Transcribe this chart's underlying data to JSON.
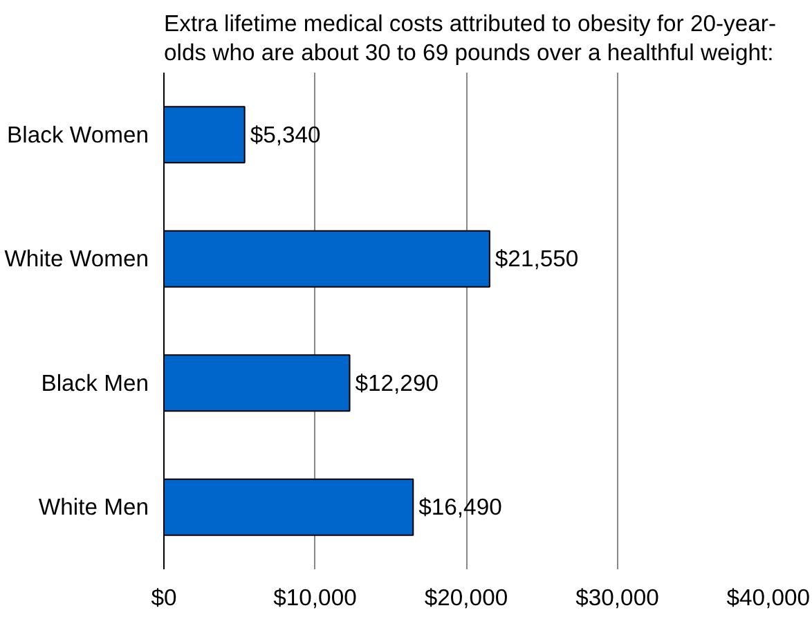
{
  "chart_data": {
    "type": "bar",
    "orientation": "horizontal",
    "title": "Extra lifetime medical costs attributed to obesity for 20-year-\nolds who are about 30 to 69 pounds over a healthful weight:",
    "categories": [
      "Black Women",
      "White Women",
      "Black Men",
      "White Men"
    ],
    "values": [
      5340,
      21550,
      12290,
      16490
    ],
    "value_labels": [
      "$5,340",
      "$21,550",
      "$12,290",
      "$16,490"
    ],
    "color": "#0066cc",
    "xlim": [
      0,
      40000
    ],
    "xticks": [
      {
        "value": 0,
        "label": "$0"
      },
      {
        "value": 10000,
        "label": "$10,000"
      },
      {
        "value": 20000,
        "label": "$20,000"
      },
      {
        "value": 30000,
        "label": "$30,000"
      },
      {
        "value": 40000,
        "label": "$40,000"
      }
    ],
    "grid": "x"
  }
}
